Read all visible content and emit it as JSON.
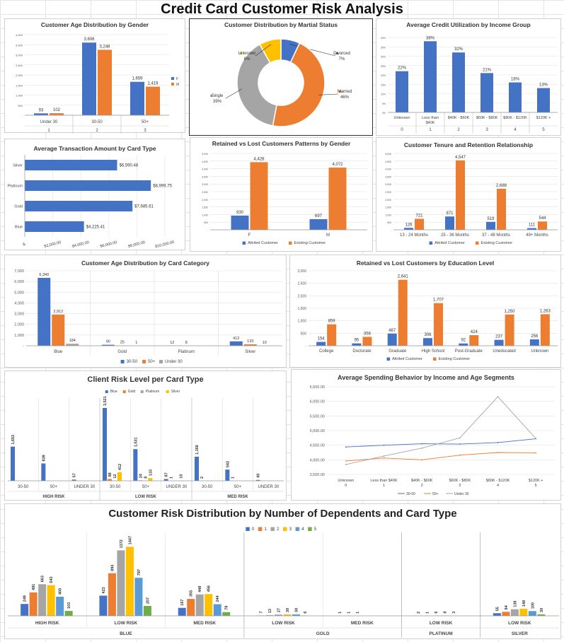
{
  "title": "Credit Card Customer Risk Analysis",
  "colors": {
    "blue": "#4472C4",
    "orange": "#ED7D31",
    "gray": "#A5A5A5",
    "yellow": "#FFC000",
    "lblue": "#5B9BD5",
    "green": "#70AD47"
  },
  "chart_data": [
    {
      "id": "age-gender",
      "type": "bar",
      "title": "Customer Age Distribution by Gender",
      "categories": [
        "Under 30",
        "30-50",
        "50+"
      ],
      "category_index": [
        "1",
        "2",
        "3"
      ],
      "series": [
        {
          "name": "F",
          "values": [
            93,
            3606,
            1659
          ]
        },
        {
          "name": "M",
          "values": [
            102,
            3248,
            1419
          ]
        }
      ],
      "data_labels": [
        [
          "93",
          "3,606",
          "1,659"
        ],
        [
          "102",
          "3,248",
          "1,419"
        ]
      ],
      "yticks": [
        "-",
        "500",
        "1,000",
        "1,500",
        "2,000",
        "2,500",
        "3,000",
        "3,500",
        "4,000"
      ],
      "ylim": [
        0,
        4000
      ],
      "legend": "right"
    },
    {
      "id": "marital",
      "type": "pie",
      "title": "Customer Distribution by Martial Status",
      "slices": [
        {
          "name": "Divorced",
          "pct": 7,
          "label": "7%"
        },
        {
          "name": "Married",
          "pct": 46,
          "label": "46%"
        },
        {
          "name": "Single",
          "pct": 39,
          "label": "39%"
        },
        {
          "name": "Unknown",
          "pct": 8,
          "label": "8%"
        }
      ]
    },
    {
      "id": "util-income",
      "type": "bar",
      "title": "Average Credit Utilization by Income Group",
      "categories": [
        "Unknown",
        "Less than $40K",
        "$40K - $60K",
        "$60K - $80K",
        "$80K - $120K",
        "$120K +"
      ],
      "category_index": [
        "0",
        "1",
        "2",
        "3",
        "4",
        "5"
      ],
      "values": [
        22,
        38,
        32,
        21,
        16,
        13
      ],
      "data_labels": [
        "22%",
        "38%",
        "32%",
        "21%",
        "16%",
        "13%"
      ],
      "yticks": [
        "0%",
        "5%",
        "10%",
        "15%",
        "20%",
        "25%",
        "30%",
        "35%",
        "40%"
      ],
      "ylim": [
        0,
        40
      ]
    },
    {
      "id": "txn-card",
      "type": "bar",
      "orientation": "horizontal",
      "title": "Average Transaction Amount by Card Type",
      "categories": [
        "Silver",
        "Platinum",
        "Gold",
        "Blue"
      ],
      "values": [
        6590.48,
        8999.75,
        7685.61,
        4225.41
      ],
      "data_labels": [
        "$6,590.48",
        "$8,999.75",
        "$7,685.61",
        "$4,225.41"
      ],
      "xticks": [
        "$-",
        "$2,000.00",
        "$4,000.00",
        "$6,000.00",
        "$8,000.00",
        "$10,000.00"
      ],
      "xlim": [
        0,
        10000
      ]
    },
    {
      "id": "retained-gender",
      "type": "bar",
      "title": "Retained vs Lost Customers Patterns by Gender",
      "categories": [
        "F",
        "M"
      ],
      "series": [
        {
          "name": "Attrited Customer",
          "values": [
            930,
            697
          ]
        },
        {
          "name": "Existing Customer",
          "values": [
            4428,
            4072
          ]
        }
      ],
      "data_labels": [
        [
          "930",
          "697"
        ],
        [
          "4,428",
          "4,072"
        ]
      ],
      "yticks": [
        "-",
        "500",
        "1,000",
        "1,500",
        "2,000",
        "2,500",
        "3,000",
        "3,500",
        "4,000",
        "4,500",
        "5,000"
      ],
      "ylim": [
        0,
        5000
      ],
      "legend": "bottom"
    },
    {
      "id": "tenure",
      "type": "bar",
      "title": "Customer Tenure and Retention Relationship",
      "categories": [
        "13 - 24 Months",
        "25 - 36 Months",
        "37 - 48 Months",
        "49+ Months"
      ],
      "series": [
        {
          "name": "Attrited Customer",
          "values": [
            126,
            871,
            519,
            111
          ]
        },
        {
          "name": "Existing Customer",
          "values": [
            721,
            4547,
            2688,
            544
          ]
        }
      ],
      "data_labels": [
        [
          "126",
          "871",
          "519",
          "111"
        ],
        [
          "721",
          "4,547",
          "2,688",
          "544"
        ]
      ],
      "yticks": [
        "-",
        "500",
        "1,000",
        "1,500",
        "2,000",
        "2,500",
        "3,000",
        "3,500",
        "4,000",
        "4,500",
        "5,000"
      ],
      "ylim": [
        0,
        5000
      ],
      "legend": "bottom"
    },
    {
      "id": "age-card",
      "type": "bar",
      "title": "Customer Age Distribution by Card Category",
      "categories": [
        "Blue",
        "Gold",
        "Platinum",
        "Silver"
      ],
      "series": [
        {
          "name": "30-50",
          "values": [
            6340,
            90,
            12,
            412
          ]
        },
        {
          "name": "50+",
          "values": [
            2912,
            25,
            8,
            133
          ]
        },
        {
          "name": "Under 30",
          "values": [
            184,
            1,
            0,
            10
          ]
        }
      ],
      "data_labels": [
        [
          "6,340",
          "90",
          "12",
          "412"
        ],
        [
          "2,912",
          "25",
          "8",
          "133"
        ],
        [
          "184",
          "1",
          "",
          "10"
        ]
      ],
      "yticks": [
        "-",
        "1,000",
        "2,000",
        "3,000",
        "4,000",
        "5,000",
        "6,000",
        "7,000"
      ],
      "ylim": [
        0,
        7000
      ],
      "legend": "bottom"
    },
    {
      "id": "education",
      "type": "bar",
      "title": "Retained vs Lost Customers by Education Level",
      "categories": [
        "College",
        "Doctorate",
        "Graduate",
        "High School",
        "Post-Graduate",
        "Uneducated",
        "Unknown"
      ],
      "series": [
        {
          "name": "Attrited Customer",
          "values": [
            154,
            95,
            487,
            306,
            92,
            237,
            256
          ]
        },
        {
          "name": "Existing Customer",
          "values": [
            859,
            356,
            2641,
            1707,
            424,
            1250,
            1263
          ]
        }
      ],
      "data_labels": [
        [
          "154",
          "95",
          "487",
          "306",
          "92",
          "237",
          "256"
        ],
        [
          "859",
          "356",
          "2,641",
          "1,707",
          "424",
          "1,250",
          "1,263"
        ]
      ],
      "yticks": [
        "-",
        "500",
        "1,000",
        "1,500",
        "2,000",
        "2,500",
        "3,000"
      ],
      "ylim": [
        0,
        3000
      ],
      "legend": "bottom"
    },
    {
      "id": "risk-card",
      "type": "bar",
      "title": "Client Risk Level per Card Type",
      "groups": [
        "HIGH RISK",
        "LOW RISK",
        "MED RISK"
      ],
      "subcategories": [
        "30-50",
        "50+",
        "UNDER 30"
      ],
      "series_names": [
        "Blue",
        "Gold",
        "Platinum",
        "Silver"
      ],
      "values": [
        [
          [
            1653,
            0,
            0,
            0
          ],
          [
            839,
            0,
            0,
            0
          ],
          [
            57,
            0,
            0,
            0
          ]
        ],
        [
          [
            3521,
            88,
            12,
            412
          ],
          [
            1531,
            24,
            8,
            133
          ],
          [
            87,
            1,
            0,
            10
          ]
        ],
        [
          [
            1166,
            2,
            0,
            0
          ],
          [
            542,
            1,
            0,
            0
          ],
          [
            40,
            0,
            0,
            0
          ]
        ]
      ],
      "data_labels": [
        [
          [
            "1,653",
            "",
            "",
            ""
          ],
          [
            "839",
            "",
            "",
            ""
          ],
          [
            "57",
            "",
            "",
            ""
          ]
        ],
        [
          [
            "3,521",
            "88",
            "12",
            "412"
          ],
          [
            "1,531",
            "24",
            "8",
            "133"
          ],
          [
            "87",
            "1",
            "",
            "10"
          ]
        ],
        [
          [
            "1,166",
            "2",
            "",
            ""
          ],
          [
            "542",
            "1",
            "",
            ""
          ],
          [
            "40",
            "",
            "",
            ""
          ]
        ]
      ],
      "ylim": [
        0,
        4000
      ],
      "legend": "top"
    },
    {
      "id": "spending",
      "type": "line",
      "title": "Average Spending Behavior by Income and Age Segments",
      "categories": [
        "Unknown",
        "Less than $40K",
        "$40K - $60K",
        "$60K - $80K",
        "$80K - $120K",
        "$120K +"
      ],
      "category_index": [
        "0",
        "1",
        "2",
        "3",
        "4",
        "5"
      ],
      "series": [
        {
          "name": "30-50",
          "values": [
            4440,
            4500,
            4550,
            4540,
            4590,
            4720
          ]
        },
        {
          "name": "50+",
          "values": [
            3960,
            4060,
            4000,
            4160,
            4250,
            4240
          ]
        },
        {
          "name": "Under 30",
          "values": [
            3840,
            4130,
            4400,
            4750,
            6160,
            4730
          ]
        }
      ],
      "yticks": [
        "3,500.00",
        "4,000.00",
        "4,500.00",
        "5,000.00",
        "5,500.00",
        "6,000.00",
        "6,500.00"
      ],
      "ylim": [
        3500,
        6500
      ],
      "legend": "bottom"
    },
    {
      "id": "dependents",
      "type": "bar",
      "title": "Customer Risk Distribution by Number of Dependents and Card Type",
      "series_names": [
        "0",
        "1",
        "2",
        "3",
        "4",
        "5"
      ],
      "cards": [
        {
          "name": "BLUE",
          "groups": [
            {
              "name": "HIGH RISK",
              "values": [
                249,
                491,
                663,
                643,
                400,
                103
              ]
            },
            {
              "name": "LOW RISK",
              "values": [
                423,
                893,
                1372,
                1447,
                797,
                207
              ]
            },
            {
              "name": "MED RISK",
              "values": [
                167,
                355,
                448,
                456,
                244,
                78
              ]
            }
          ]
        },
        {
          "name": "GOLD",
          "groups": [
            {
              "name": "LOW RISK",
              "values": [
                7,
                13,
                27,
                30,
                30,
                6
              ]
            },
            {
              "name": "MED RISK",
              "values": [
                1,
                1,
                1,
                0,
                0,
                0
              ]
            }
          ]
        },
        {
          "name": "PLATINUM",
          "groups": [
            {
              "name": "LOW RISK",
              "values": [
                2,
                1,
                6,
                8,
                3,
                0
              ]
            }
          ]
        },
        {
          "name": "SILVER",
          "groups": [
            {
              "name": "LOW RISK",
              "values": [
                55,
                84,
                138,
                148,
                100,
                30
              ]
            }
          ]
        }
      ],
      "ylim": [
        0,
        1600
      ],
      "legend": "top"
    }
  ]
}
